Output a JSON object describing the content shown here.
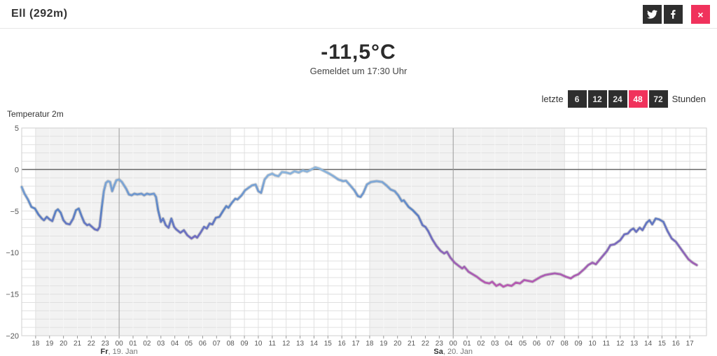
{
  "header": {
    "title": "Ell (292m)"
  },
  "share": {
    "twitter_icon": "twitter-bird",
    "facebook_icon": "facebook-f",
    "close_label": "×"
  },
  "current": {
    "temperature": "-11,5°C",
    "reported": "Gemeldet um 17:30 Uhr"
  },
  "range_selector": {
    "prefix": "letzte",
    "suffix": "Stunden",
    "options": [
      "6",
      "12",
      "24",
      "48",
      "72"
    ],
    "active": "48"
  },
  "colors": {
    "accent_red": "#f0325c",
    "button_dark": "#2e2e2e",
    "grid_light": "#e0e0e0",
    "band_gray": "rgba(0,0,0,0.05)",
    "zero_line": "#666666",
    "midnight_line": "#9a9a9a",
    "axis_text": "#555555"
  },
  "chart_data": {
    "type": "line",
    "title": "Temperatur 2m",
    "unit": "°C",
    "ylabel": "",
    "xlabel": "",
    "ylim": [
      -20,
      5
    ],
    "y_ticks": [
      5,
      0,
      -5,
      -10,
      -15,
      -20
    ],
    "x_hours_domain": [
      0,
      49.2
    ],
    "x_hour_labels": [
      "18",
      "19",
      "20",
      "21",
      "22",
      "23",
      "00",
      "01",
      "02",
      "03",
      "04",
      "05",
      "06",
      "07",
      "08",
      "09",
      "10",
      "11",
      "12",
      "13",
      "14",
      "15",
      "16",
      "17",
      "18",
      "19",
      "20",
      "21",
      "22",
      "23",
      "00",
      "01",
      "02",
      "03",
      "04",
      "05",
      "06",
      "07",
      "08",
      "09",
      "10",
      "11",
      "12",
      "13",
      "14",
      "15",
      "16",
      "17"
    ],
    "date_labels": [
      {
        "t": 7,
        "bold": "Fr",
        "rest": ", 19. Jan"
      },
      {
        "t": 31,
        "bold": "Sa",
        "rest": ", 20. Jan"
      }
    ],
    "night_bands": [
      [
        1,
        15
      ],
      [
        25,
        39
      ]
    ],
    "midnight_lines": [
      7,
      31
    ],
    "line_gradient": [
      {
        "temp": 0,
        "color": "#8db6dd"
      },
      {
        "temp": -5,
        "color": "#5a82c4"
      },
      {
        "temp": -8,
        "color": "#6f6ec0"
      },
      {
        "temp": -11,
        "color": "#9a62b4"
      },
      {
        "temp": -14,
        "color": "#b75ab2"
      }
    ],
    "points": [
      [
        0,
        -2.1
      ],
      [
        0.2,
        -2.9
      ],
      [
        0.45,
        -3.6
      ],
      [
        0.7,
        -4.5
      ],
      [
        0.95,
        -4.7
      ],
      [
        1.2,
        -5.4
      ],
      [
        1.45,
        -5.9
      ],
      [
        1.6,
        -6.1
      ],
      [
        1.8,
        -5.7
      ],
      [
        2.0,
        -6.0
      ],
      [
        2.2,
        -6.2
      ],
      [
        2.45,
        -5.0
      ],
      [
        2.6,
        -4.8
      ],
      [
        2.8,
        -5.2
      ],
      [
        3.0,
        -6.1
      ],
      [
        3.2,
        -6.5
      ],
      [
        3.45,
        -6.6
      ],
      [
        3.7,
        -5.9
      ],
      [
        3.9,
        -4.9
      ],
      [
        4.1,
        -4.7
      ],
      [
        4.3,
        -5.6
      ],
      [
        4.5,
        -6.4
      ],
      [
        4.7,
        -6.7
      ],
      [
        4.85,
        -6.6
      ],
      [
        5.05,
        -6.9
      ],
      [
        5.25,
        -7.2
      ],
      [
        5.45,
        -7.3
      ],
      [
        5.6,
        -6.9
      ],
      [
        5.75,
        -4.6
      ],
      [
        5.9,
        -2.6
      ],
      [
        6.05,
        -1.6
      ],
      [
        6.2,
        -1.4
      ],
      [
        6.35,
        -1.5
      ],
      [
        6.5,
        -2.6
      ],
      [
        6.65,
        -1.9
      ],
      [
        6.8,
        -1.3
      ],
      [
        7.0,
        -1.2
      ],
      [
        7.2,
        -1.5
      ],
      [
        7.5,
        -2.3
      ],
      [
        7.7,
        -3.0
      ],
      [
        7.9,
        -3.1
      ],
      [
        8.1,
        -2.9
      ],
      [
        8.3,
        -3.0
      ],
      [
        8.6,
        -2.9
      ],
      [
        8.8,
        -3.1
      ],
      [
        9.0,
        -2.9
      ],
      [
        9.2,
        -3.0
      ],
      [
        9.5,
        -2.9
      ],
      [
        9.65,
        -3.3
      ],
      [
        9.8,
        -4.9
      ],
      [
        10.0,
        -6.3
      ],
      [
        10.15,
        -5.9
      ],
      [
        10.35,
        -6.7
      ],
      [
        10.55,
        -7.0
      ],
      [
        10.75,
        -5.9
      ],
      [
        10.95,
        -6.9
      ],
      [
        11.1,
        -7.2
      ],
      [
        11.4,
        -7.6
      ],
      [
        11.65,
        -7.3
      ],
      [
        11.9,
        -7.9
      ],
      [
        12.2,
        -8.3
      ],
      [
        12.45,
        -8.0
      ],
      [
        12.6,
        -8.2
      ],
      [
        12.85,
        -7.6
      ],
      [
        13.1,
        -6.9
      ],
      [
        13.3,
        -7.1
      ],
      [
        13.5,
        -6.5
      ],
      [
        13.7,
        -6.6
      ],
      [
        13.95,
        -5.8
      ],
      [
        14.2,
        -5.7
      ],
      [
        14.5,
        -4.9
      ],
      [
        14.7,
        -4.4
      ],
      [
        14.85,
        -4.6
      ],
      [
        15.1,
        -4.0
      ],
      [
        15.35,
        -3.5
      ],
      [
        15.5,
        -3.6
      ],
      [
        15.8,
        -3.1
      ],
      [
        16.05,
        -2.5
      ],
      [
        16.3,
        -2.2
      ],
      [
        16.55,
        -1.9
      ],
      [
        16.8,
        -1.8
      ],
      [
        17.0,
        -2.6
      ],
      [
        17.2,
        -2.8
      ],
      [
        17.45,
        -1.2
      ],
      [
        17.7,
        -0.7
      ],
      [
        18.0,
        -0.5
      ],
      [
        18.2,
        -0.7
      ],
      [
        18.45,
        -0.8
      ],
      [
        18.7,
        -0.3
      ],
      [
        19.0,
        -0.35
      ],
      [
        19.3,
        -0.5
      ],
      [
        19.6,
        -0.2
      ],
      [
        19.9,
        -0.35
      ],
      [
        20.2,
        -0.1
      ],
      [
        20.5,
        -0.25
      ],
      [
        20.8,
        0.0
      ],
      [
        21.1,
        0.25
      ],
      [
        21.4,
        0.1
      ],
      [
        21.7,
        -0.15
      ],
      [
        22.1,
        -0.5
      ],
      [
        22.4,
        -0.8
      ],
      [
        22.75,
        -1.2
      ],
      [
        23.1,
        -1.4
      ],
      [
        23.3,
        -1.35
      ],
      [
        23.6,
        -1.9
      ],
      [
        23.9,
        -2.5
      ],
      [
        24.15,
        -3.2
      ],
      [
        24.35,
        -3.3
      ],
      [
        24.55,
        -2.8
      ],
      [
        24.8,
        -1.8
      ],
      [
        25.1,
        -1.5
      ],
      [
        25.5,
        -1.4
      ],
      [
        25.9,
        -1.5
      ],
      [
        26.2,
        -1.9
      ],
      [
        26.5,
        -2.4
      ],
      [
        26.8,
        -2.6
      ],
      [
        27.05,
        -3.1
      ],
      [
        27.3,
        -3.8
      ],
      [
        27.45,
        -3.7
      ],
      [
        27.8,
        -4.5
      ],
      [
        28.1,
        -4.9
      ],
      [
        28.5,
        -5.6
      ],
      [
        28.8,
        -6.7
      ],
      [
        29.0,
        -6.9
      ],
      [
        29.2,
        -7.4
      ],
      [
        29.5,
        -8.4
      ],
      [
        29.8,
        -9.2
      ],
      [
        30.1,
        -9.8
      ],
      [
        30.35,
        -10.1
      ],
      [
        30.55,
        -9.9
      ],
      [
        30.8,
        -10.6
      ],
      [
        31.1,
        -11.2
      ],
      [
        31.4,
        -11.6
      ],
      [
        31.65,
        -11.9
      ],
      [
        31.8,
        -11.7
      ],
      [
        32.1,
        -12.3
      ],
      [
        32.4,
        -12.6
      ],
      [
        32.7,
        -12.9
      ],
      [
        33.0,
        -13.3
      ],
      [
        33.3,
        -13.6
      ],
      [
        33.6,
        -13.7
      ],
      [
        33.8,
        -13.5
      ],
      [
        34.1,
        -14.0
      ],
      [
        34.35,
        -13.8
      ],
      [
        34.6,
        -14.1
      ],
      [
        34.9,
        -13.9
      ],
      [
        35.2,
        -14.0
      ],
      [
        35.5,
        -13.6
      ],
      [
        35.8,
        -13.7
      ],
      [
        36.1,
        -13.3
      ],
      [
        36.4,
        -13.4
      ],
      [
        36.7,
        -13.5
      ],
      [
        37.0,
        -13.2
      ],
      [
        37.3,
        -12.9
      ],
      [
        37.6,
        -12.7
      ],
      [
        37.9,
        -12.6
      ],
      [
        38.3,
        -12.5
      ],
      [
        38.7,
        -12.6
      ],
      [
        39.1,
        -12.9
      ],
      [
        39.45,
        -13.1
      ],
      [
        39.7,
        -12.8
      ],
      [
        40.0,
        -12.6
      ],
      [
        40.4,
        -12.0
      ],
      [
        40.7,
        -11.5
      ],
      [
        41.0,
        -11.2
      ],
      [
        41.25,
        -11.4
      ],
      [
        41.55,
        -10.8
      ],
      [
        41.8,
        -10.3
      ],
      [
        42.05,
        -9.8
      ],
      [
        42.3,
        -9.1
      ],
      [
        42.6,
        -9.0
      ],
      [
        43.0,
        -8.5
      ],
      [
        43.3,
        -7.8
      ],
      [
        43.55,
        -7.7
      ],
      [
        43.75,
        -7.3
      ],
      [
        43.95,
        -7.1
      ],
      [
        44.15,
        -7.5
      ],
      [
        44.4,
        -7.0
      ],
      [
        44.6,
        -7.3
      ],
      [
        44.9,
        -6.4
      ],
      [
        45.1,
        -6.1
      ],
      [
        45.3,
        -6.6
      ],
      [
        45.55,
        -5.9
      ],
      [
        45.8,
        -6.0
      ],
      [
        46.1,
        -6.3
      ],
      [
        46.4,
        -7.4
      ],
      [
        46.7,
        -8.3
      ],
      [
        47.0,
        -8.7
      ],
      [
        47.3,
        -9.4
      ],
      [
        47.6,
        -10.1
      ],
      [
        47.9,
        -10.8
      ],
      [
        48.2,
        -11.2
      ],
      [
        48.5,
        -11.5
      ]
    ]
  }
}
